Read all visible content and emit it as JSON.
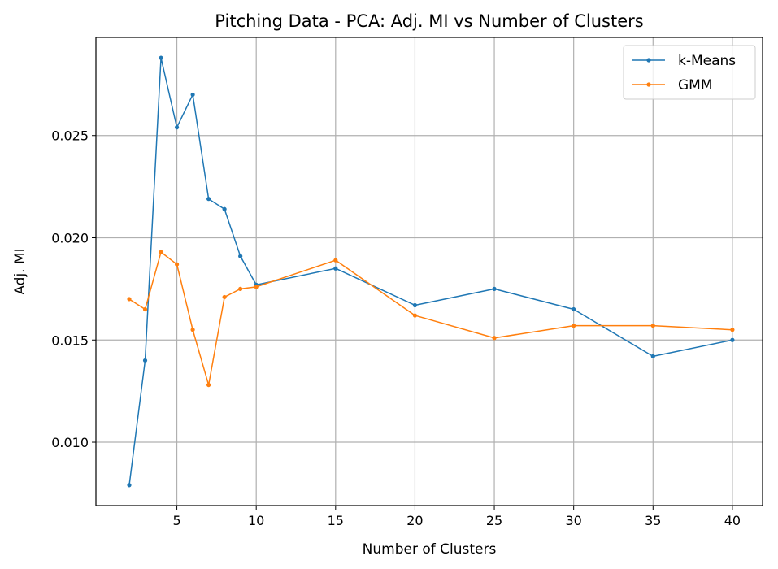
{
  "chart_data": {
    "type": "line",
    "title": "Pitching Data - PCA: Adj. MI vs Number of Clusters",
    "xlabel": "Number of Clusters",
    "ylabel": "Adj. MI",
    "xlim": [
      -0.1,
      41.9
    ],
    "ylim": [
      0.0069,
      0.0298
    ],
    "xticks": [
      5,
      10,
      15,
      20,
      25,
      30,
      35,
      40
    ],
    "xtick_labels": [
      "5",
      "10",
      "15",
      "20",
      "25",
      "30",
      "35",
      "40"
    ],
    "yticks": [
      0.01,
      0.015,
      0.02,
      0.025
    ],
    "ytick_labels": [
      "0.010",
      "0.015",
      "0.020",
      "0.025"
    ],
    "grid": true,
    "legend_position": "top-right",
    "series": [
      {
        "name": "k-Means",
        "color": "#1f77b4",
        "x": [
          2,
          3,
          4,
          5,
          6,
          7,
          8,
          9,
          10,
          15,
          20,
          25,
          30,
          35,
          40
        ],
        "y": [
          0.0079,
          0.014,
          0.0288,
          0.0254,
          0.027,
          0.0219,
          0.0214,
          0.0191,
          0.0177,
          0.0185,
          0.0167,
          0.0175,
          0.0165,
          0.0142,
          0.015
        ]
      },
      {
        "name": "GMM",
        "color": "#ff7f0e",
        "x": [
          2,
          3,
          4,
          5,
          6,
          7,
          8,
          9,
          10,
          15,
          20,
          25,
          30,
          35,
          40
        ],
        "y": [
          0.017,
          0.0165,
          0.0193,
          0.0187,
          0.0155,
          0.0128,
          0.0171,
          0.0175,
          0.0176,
          0.0189,
          0.0162,
          0.0151,
          0.0157,
          0.0157,
          0.0155
        ]
      }
    ]
  }
}
